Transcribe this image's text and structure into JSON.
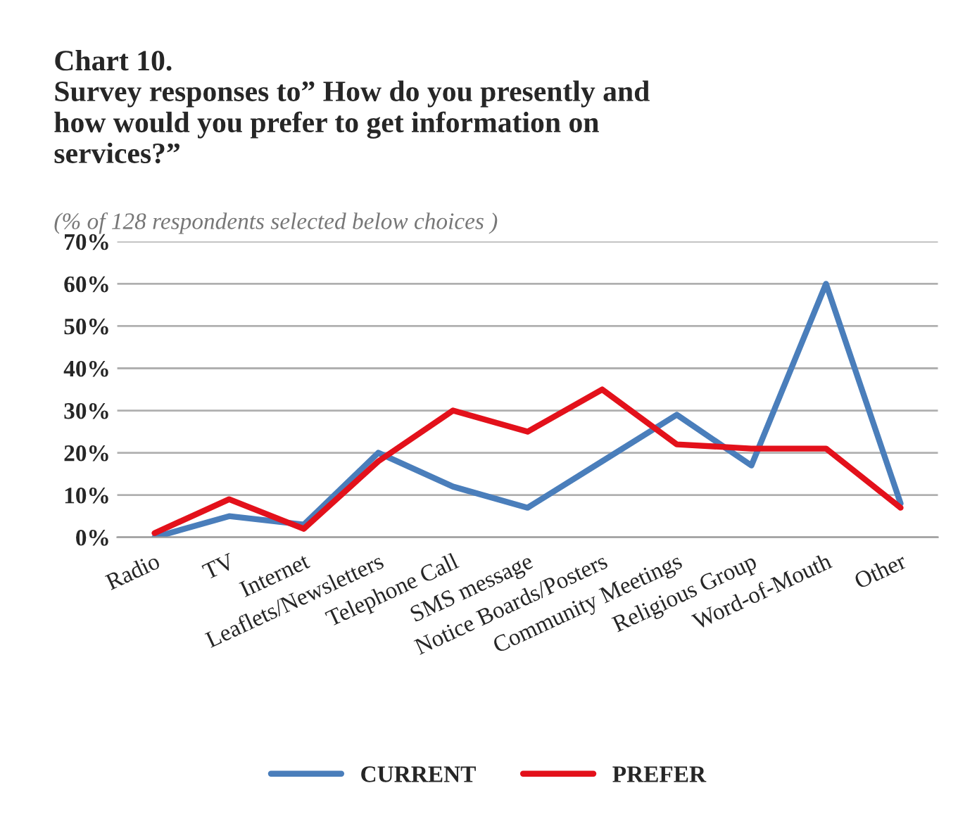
{
  "chart_data": {
    "type": "line",
    "title": "Chart 10.\nSurvey responses to” How do you presently and\nhow would you prefer to get information on\nservices?”",
    "subtitle": "(% of 128 respondents selected below choices )",
    "categories": [
      "Radio",
      "TV",
      "Internet",
      "Leaflets/Newsletters",
      "Telephone Call",
      "SMS message",
      "Notice Boards/Posters",
      "Community Meetings",
      "Religious Group",
      "Word-of-Mouth",
      "Other"
    ],
    "series": [
      {
        "name": "CURRENT",
        "color": "#4a7ebb",
        "values": [
          0,
          5,
          3,
          20,
          12,
          7,
          18,
          29,
          17,
          60,
          8
        ]
      },
      {
        "name": "PREFER",
        "color": "#e3111b",
        "values": [
          1,
          9,
          2,
          18,
          30,
          25,
          35,
          22,
          21,
          21,
          7
        ]
      }
    ],
    "ylim": [
      0,
      70
    ],
    "yticks": [
      {
        "value": 0,
        "label": "0%"
      },
      {
        "value": 10,
        "label": "10%"
      },
      {
        "value": 20,
        "label": "20%"
      },
      {
        "value": 30,
        "label": "30%"
      },
      {
        "value": 40,
        "label": "40%"
      },
      {
        "value": 50,
        "label": "50%"
      },
      {
        "value": 60,
        "label": "60%"
      },
      {
        "value": 70,
        "label": "70%"
      }
    ],
    "grid": "y",
    "legend": "bottom",
    "marker": "none",
    "line_style": "solid"
  }
}
